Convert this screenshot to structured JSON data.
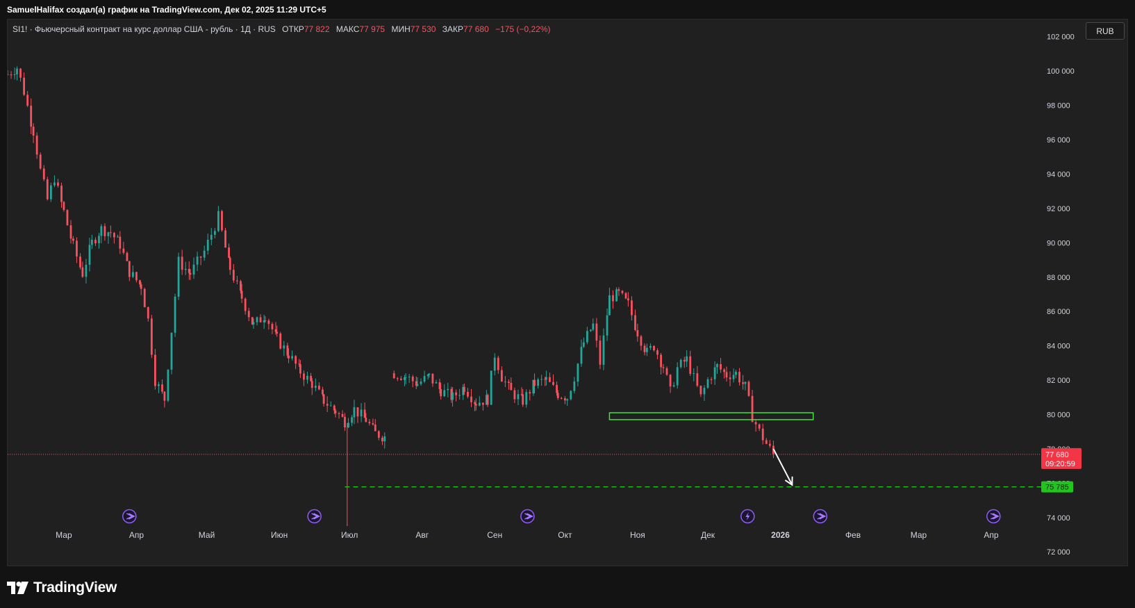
{
  "header": {
    "attribution": "SamuelHalifax создал(а) график на TradingView.com, Дек 02, 2025 11:29 UTC+5"
  },
  "legend": {
    "symbol": "SI1! · Фьючерсный контракт на курс доллар США - рубль · 1Д · RUS",
    "open_label": "ОТКР",
    "open": "77 822",
    "high_label": "МАКС",
    "high": "77 975",
    "low_label": "МИН",
    "low": "77 530",
    "close_label": "ЗАКР",
    "close": "77 680",
    "change": "−175 (−0,22%)"
  },
  "currency_button": "RUB",
  "brand": {
    "name": "TradingView"
  },
  "colors": {
    "up": "#26a69a",
    "down": "#f7525f",
    "background": "#202020",
    "text": "#d1d4dc",
    "zone": "#3ee53a",
    "target": "#22c51e",
    "arrow": "#ffffff"
  },
  "chart_data": {
    "type": "candlestick",
    "y_ticks": [
      "72 000",
      "74 000",
      "76 000",
      "78 000",
      "80 000",
      "82 000",
      "84 000",
      "86 000",
      "88 000",
      "90 000",
      "92 000",
      "94 000",
      "96 000",
      "98 000",
      "100 000",
      "102 000"
    ],
    "y_range": [
      71200,
      103000
    ],
    "x_ticks": [
      {
        "label": "Мар",
        "date": "2025-03-01"
      },
      {
        "label": "Апр",
        "date": "2025-04-01"
      },
      {
        "label": "Май",
        "date": "2025-05-01"
      },
      {
        "label": "Июн",
        "date": "2025-06-01"
      },
      {
        "label": "Июл",
        "date": "2025-07-01"
      },
      {
        "label": "Авг",
        "date": "2025-08-01"
      },
      {
        "label": "Сен",
        "date": "2025-09-01"
      },
      {
        "label": "Окт",
        "date": "2025-10-01"
      },
      {
        "label": "Ноя",
        "date": "2025-11-01"
      },
      {
        "label": "Дек",
        "date": "2025-12-01"
      },
      {
        "label": "2026",
        "date": "2026-01-01"
      },
      {
        "label": "Фев",
        "date": "2026-02-01"
      },
      {
        "label": "Мар",
        "date": "2026-03-01"
      },
      {
        "label": "Апр",
        "date": "2026-04-01"
      }
    ],
    "x_range": [
      "2025-02-05",
      "2026-04-20"
    ],
    "anchors": [
      [
        "2025-02-05",
        99800
      ],
      [
        "2025-02-09",
        100200
      ],
      [
        "2025-02-12",
        98800
      ],
      [
        "2025-02-16",
        96500
      ],
      [
        "2025-02-19",
        94200
      ],
      [
        "2025-02-22",
        92500
      ],
      [
        "2025-02-25",
        93800
      ],
      [
        "2025-03-01",
        91800
      ],
      [
        "2025-03-05",
        89800
      ],
      [
        "2025-03-09",
        88200
      ],
      [
        "2025-03-13",
        90000
      ],
      [
        "2025-03-17",
        90800
      ],
      [
        "2025-03-21",
        90600
      ],
      [
        "2025-03-25",
        89900
      ],
      [
        "2025-03-29",
        88300
      ],
      [
        "2025-04-03",
        87500
      ],
      [
        "2025-04-06",
        85500
      ],
      [
        "2025-04-09",
        82000
      ],
      [
        "2025-04-13",
        80900
      ],
      [
        "2025-04-19",
        88900
      ],
      [
        "2025-04-24",
        88200
      ],
      [
        "2025-04-30",
        89500
      ],
      [
        "2025-05-06",
        91500
      ],
      [
        "2025-05-11",
        88500
      ],
      [
        "2025-05-16",
        86800
      ],
      [
        "2025-05-21",
        85200
      ],
      [
        "2025-05-26",
        85800
      ],
      [
        "2025-05-31",
        84400
      ],
      [
        "2025-06-05",
        83500
      ],
      [
        "2025-06-10",
        82500
      ],
      [
        "2025-06-15",
        81800
      ],
      [
        "2025-06-20",
        80800
      ],
      [
        "2025-06-25",
        80200
      ],
      [
        "2025-06-29",
        79600
      ],
      [
        "2025-07-03",
        80300
      ],
      [
        "2025-07-08",
        79700
      ],
      [
        "2025-07-12",
        78900
      ],
      [
        "2025-07-16",
        78700
      ]
    ],
    "anchors_2": [
      [
        "2025-07-20",
        82400
      ],
      [
        "2025-07-25",
        82200
      ],
      [
        "2025-07-30",
        81800
      ],
      [
        "2025-08-04",
        82200
      ],
      [
        "2025-08-09",
        81400
      ],
      [
        "2025-08-14",
        81000
      ],
      [
        "2025-08-19",
        81600
      ],
      [
        "2025-08-24",
        80700
      ],
      [
        "2025-08-29",
        80900
      ],
      [
        "2025-09-01",
        83500
      ],
      [
        "2025-09-04",
        82200
      ],
      [
        "2025-09-08",
        81300
      ],
      [
        "2025-09-13",
        80800
      ],
      [
        "2025-09-18",
        81800
      ],
      [
        "2025-09-23",
        82000
      ],
      [
        "2025-09-28",
        81200
      ],
      [
        "2025-10-02",
        81000
      ],
      [
        "2025-10-05",
        82200
      ],
      [
        "2025-10-09",
        84200
      ],
      [
        "2025-10-13",
        85200
      ],
      [
        "2025-10-16",
        83000
      ],
      [
        "2025-10-20",
        86800
      ],
      [
        "2025-10-24",
        87000
      ],
      [
        "2025-10-28",
        86400
      ],
      [
        "2025-11-01",
        84800
      ],
      [
        "2025-11-05",
        83600
      ],
      [
        "2025-11-08",
        84000
      ],
      [
        "2025-11-12",
        82800
      ],
      [
        "2025-11-15",
        81300
      ],
      [
        "2025-11-18",
        82700
      ],
      [
        "2025-11-22",
        83200
      ],
      [
        "2025-11-25",
        82100
      ],
      [
        "2025-11-28",
        81000
      ],
      [
        "2025-12-01",
        82000
      ],
      [
        "2025-12-05",
        82800
      ],
      [
        "2025-12-09",
        82300
      ],
      [
        "2025-12-13",
        82400
      ],
      [
        "2025-12-17",
        81600
      ],
      [
        "2025-12-20",
        79900
      ],
      [
        "2025-12-23",
        79000
      ],
      [
        "2025-12-26",
        78300
      ],
      [
        "2025-12-29",
        77680
      ]
    ],
    "last_price": {
      "value": 77680,
      "label": "77 680",
      "countdown": "09:20:59"
    },
    "target_level": {
      "value": 75785,
      "label": "75 785",
      "from_date": "2025-06-29"
    },
    "zone": {
      "start_date": "2025-10-20",
      "end_date": "2026-01-15",
      "top": 80100,
      "bottom": 79700
    },
    "arrow": {
      "from_date": "2025-12-29",
      "from": 78000,
      "to_date": "2026-01-06",
      "to": 75900
    },
    "wick_spike": {
      "date": "2025-06-30",
      "high": 79500,
      "low": 73500
    },
    "event_markers": [
      {
        "date": "2025-03-29",
        "icon": "dividend-icon"
      },
      {
        "date": "2025-06-16",
        "icon": "dividend-icon"
      },
      {
        "date": "2025-09-15",
        "icon": "dividend-icon"
      },
      {
        "date": "2025-12-18",
        "icon": "lightning-icon"
      },
      {
        "date": "2026-01-18",
        "icon": "dividend-icon"
      },
      {
        "date": "2026-04-02",
        "icon": "dividend-icon"
      }
    ]
  }
}
